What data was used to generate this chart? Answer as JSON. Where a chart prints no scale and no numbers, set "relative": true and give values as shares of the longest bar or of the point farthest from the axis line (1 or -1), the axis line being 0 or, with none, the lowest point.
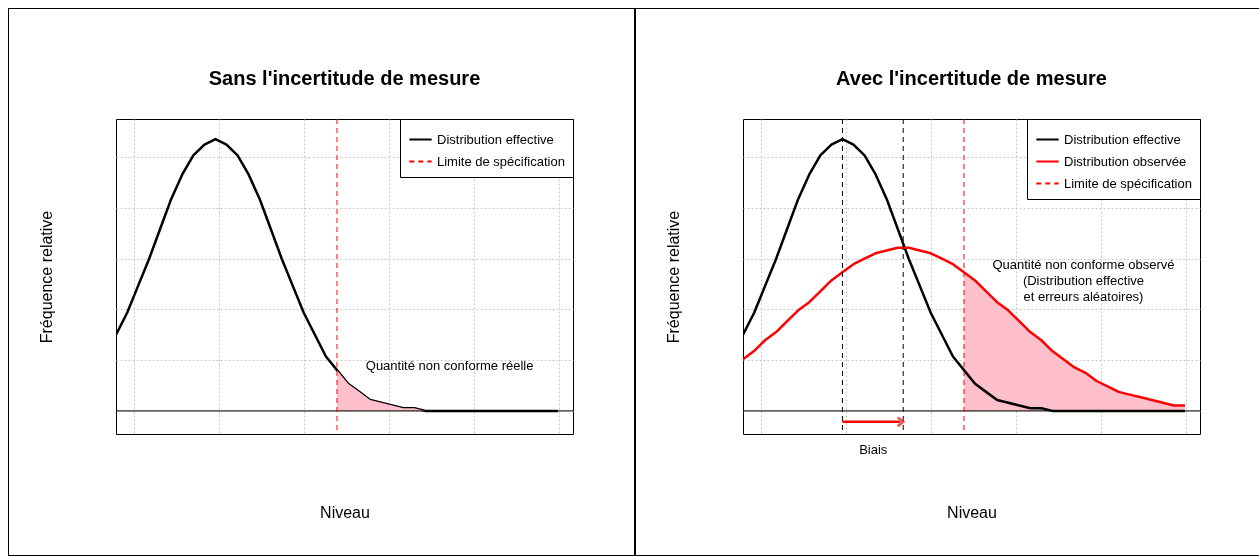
{
  "chart_data": [
    {
      "type": "line",
      "title": "Sans l'incertitude de mesure",
      "xlabel": "Niveau",
      "ylabel": "Fréquence relative",
      "relative": true,
      "grid": true,
      "legend": "top right",
      "categories": [
        null,
        null,
        null,
        null,
        null,
        null,
        null,
        null,
        null,
        null,
        null,
        null,
        null,
        null,
        null,
        null,
        null,
        null,
        null,
        null,
        null,
        null,
        null,
        null,
        null,
        null,
        null,
        null,
        null,
        null,
        null,
        null,
        null,
        null,
        null,
        null,
        null,
        null,
        null,
        null,
        null
      ],
      "series": [
        {
          "name": "Distribution effective",
          "color": "#000000",
          "values": [
            0.28,
            0.36,
            0.46,
            0.56,
            0.67,
            0.78,
            0.87,
            0.94,
            0.98,
            1,
            0.98,
            0.94,
            0.87,
            0.78,
            0.67,
            0.56,
            0.46,
            0.36,
            0.28,
            0.2,
            0.15,
            0.1,
            0.07,
            0.04,
            0.03,
            0.02,
            0.01,
            0.01,
            0,
            0,
            0,
            0,
            0,
            0,
            0,
            0,
            0,
            0,
            0,
            0,
            0
          ]
        },
        {
          "type": "area",
          "color": "#ffc0cb",
          "values": [
            null,
            null,
            null,
            null,
            null,
            null,
            null,
            null,
            null,
            null,
            null,
            null,
            null,
            null,
            null,
            null,
            null,
            null,
            null,
            null,
            0.15,
            0.1,
            0.07,
            0.04,
            0.03,
            0.02,
            0.01,
            0.01,
            0,
            0,
            0,
            0,
            0,
            0,
            0,
            0,
            0,
            0,
            0,
            0,
            0
          ]
        }
      ],
      "ref_lines": [
        {
          "axis": "x",
          "label": "Limite de spécification",
          "color": "#ff0000",
          "line_style": "dashed"
        }
      ],
      "annotations": [
        "Quantité non conforme réelle"
      ]
    },
    {
      "type": "line",
      "title": "Avec l'incertitude de mesure",
      "xlabel": "Niveau",
      "ylabel": "Fréquence relative",
      "relative": true,
      "grid": true,
      "legend": "top right",
      "categories": [
        null,
        null,
        null,
        null,
        null,
        null,
        null,
        null,
        null,
        null,
        null,
        null,
        null,
        null,
        null,
        null,
        null,
        null,
        null,
        null,
        null,
        null,
        null,
        null,
        null,
        null,
        null,
        null,
        null,
        null,
        null,
        null,
        null,
        null,
        null,
        null,
        null,
        null,
        null,
        null,
        null
      ],
      "series": [
        {
          "type": "area",
          "color": "#ffc0cb",
          "values": [
            null,
            null,
            null,
            null,
            null,
            null,
            null,
            null,
            null,
            null,
            null,
            null,
            null,
            null,
            null,
            null,
            null,
            null,
            null,
            null,
            0.51,
            0.48,
            0.44,
            0.4,
            0.37,
            0.33,
            0.29,
            0.26,
            0.22,
            0.19,
            0.16,
            0.14,
            0.11,
            0.09,
            0.07,
            0.06,
            0.05,
            0.04,
            0.03,
            0.02,
            0.02
          ]
        },
        {
          "name": "Distribution effective",
          "color": "#000000",
          "values": [
            0.28,
            0.36,
            0.46,
            0.56,
            0.67,
            0.78,
            0.87,
            0.94,
            0.98,
            1,
            0.98,
            0.94,
            0.87,
            0.78,
            0.67,
            0.56,
            0.46,
            0.36,
            0.28,
            0.2,
            0.15,
            0.1,
            0.07,
            0.04,
            0.03,
            0.02,
            0.01,
            0.01,
            0,
            0,
            0,
            0,
            0,
            0,
            0,
            0,
            0,
            0,
            0,
            0,
            0
          ]
        },
        {
          "name": "Distribution observée",
          "color": "#ff0000",
          "values": [
            0.19,
            0.22,
            0.26,
            0.29,
            0.33,
            0.37,
            0.4,
            0.44,
            0.48,
            0.51,
            0.54,
            0.56,
            0.58,
            0.59,
            0.6,
            0.6,
            0.59,
            0.58,
            0.56,
            0.54,
            0.51,
            0.48,
            0.44,
            0.4,
            0.37,
            0.33,
            0.29,
            0.26,
            0.22,
            0.19,
            0.16,
            0.14,
            0.11,
            0.09,
            0.07,
            0.06,
            0.05,
            0.04,
            0.03,
            0.02,
            0.02
          ]
        }
      ],
      "ref_lines": [
        {
          "axis": "x",
          "label": "Limite de spécification",
          "color": "#ff0000",
          "line_style": "dashed"
        }
      ],
      "annotations": [
        "Quantité non conforme observé\n(Distribution effective\net erreurs aléatoires)",
        "Biais"
      ]
    }
  ]
}
